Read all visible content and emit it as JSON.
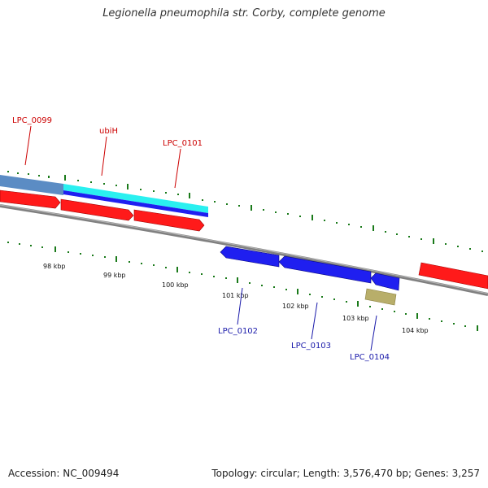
{
  "title": "Legionella pneumophila str. Corby, complete genome",
  "footer": {
    "accession": "Accession: NC_009494",
    "summary": "Topology: circular; Length: 3,576,470 bp; Genes: 3,257"
  },
  "colors": {
    "forward_gene": "#ff1a1a",
    "reverse_gene": "#1f1ff0",
    "selection_cyan": "#2af0f0",
    "selection_blue": "#5b8cc4",
    "backbone": "#808080",
    "tick": "#1a7a1a",
    "olive_feature": "#b8ae6a",
    "top_label": "#cc0000",
    "bottom_label": "#1a1aaa"
  },
  "ticks": [
    {
      "label": "98 kbp"
    },
    {
      "label": "99 kbp"
    },
    {
      "label": "100 kbp"
    },
    {
      "label": "101 kbp"
    },
    {
      "label": "102 kbp"
    },
    {
      "label": "103 kbp"
    },
    {
      "label": "104 kbp"
    }
  ],
  "labels": {
    "top": [
      {
        "name": "LPC_0099"
      },
      {
        "name": "ubiH"
      },
      {
        "name": "LPC_0101"
      }
    ],
    "bottom": [
      {
        "name": "LPC_0102"
      },
      {
        "name": "LPC_0103"
      },
      {
        "name": "LPC_0104"
      }
    ]
  }
}
